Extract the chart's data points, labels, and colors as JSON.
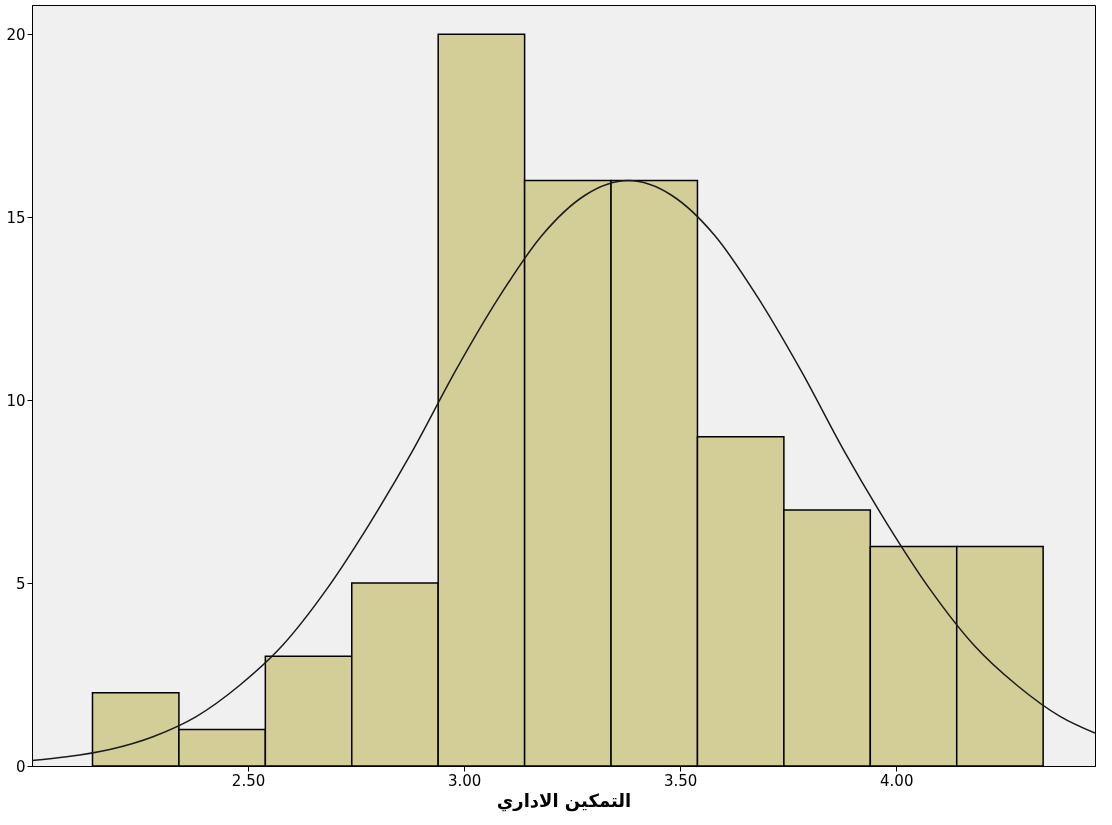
{
  "chart_data": {
    "type": "histogram",
    "xlabel": "التمكين الاداري",
    "bins": [
      2.14,
      2.34,
      2.54,
      2.74,
      2.94,
      3.14,
      3.34,
      3.54,
      3.74,
      3.94,
      4.14,
      4.34
    ],
    "values": [
      2,
      1,
      3,
      5,
      20,
      16,
      16,
      9,
      7,
      6,
      6
    ],
    "color": "#d3cd98",
    "series": [
      {
        "type": "line",
        "color": "#1a1a1a",
        "x": [
          2.0,
          2.08,
          2.18,
          2.28,
          2.38,
          2.48,
          2.58,
          2.68,
          2.78,
          2.88,
          2.98,
          3.08,
          3.18,
          3.28,
          3.38,
          3.48,
          3.58,
          3.68,
          3.78,
          3.88,
          3.98,
          4.08,
          4.18,
          4.28,
          4.38,
          4.46
        ],
        "values": [
          0.15,
          0.25,
          0.45,
          0.8,
          1.35,
          2.2,
          3.3,
          4.8,
          6.6,
          8.6,
          10.8,
          12.8,
          14.5,
          15.6,
          16,
          15.6,
          14.5,
          12.8,
          10.8,
          8.6,
          6.6,
          4.8,
          3.3,
          2.2,
          1.35,
          0.9
        ]
      }
    ],
    "xlim": [
      2.0,
      4.46
    ],
    "ylim": [
      0,
      20.8
    ],
    "xticks": [
      {
        "value": 2.5,
        "label": "2.50"
      },
      {
        "value": 3.0,
        "label": "3.00"
      },
      {
        "value": 3.5,
        "label": "3.50"
      },
      {
        "value": 4.0,
        "label": "4.00"
      }
    ],
    "yticks": [
      0,
      5,
      10,
      15,
      20
    ],
    "grid": false
  }
}
